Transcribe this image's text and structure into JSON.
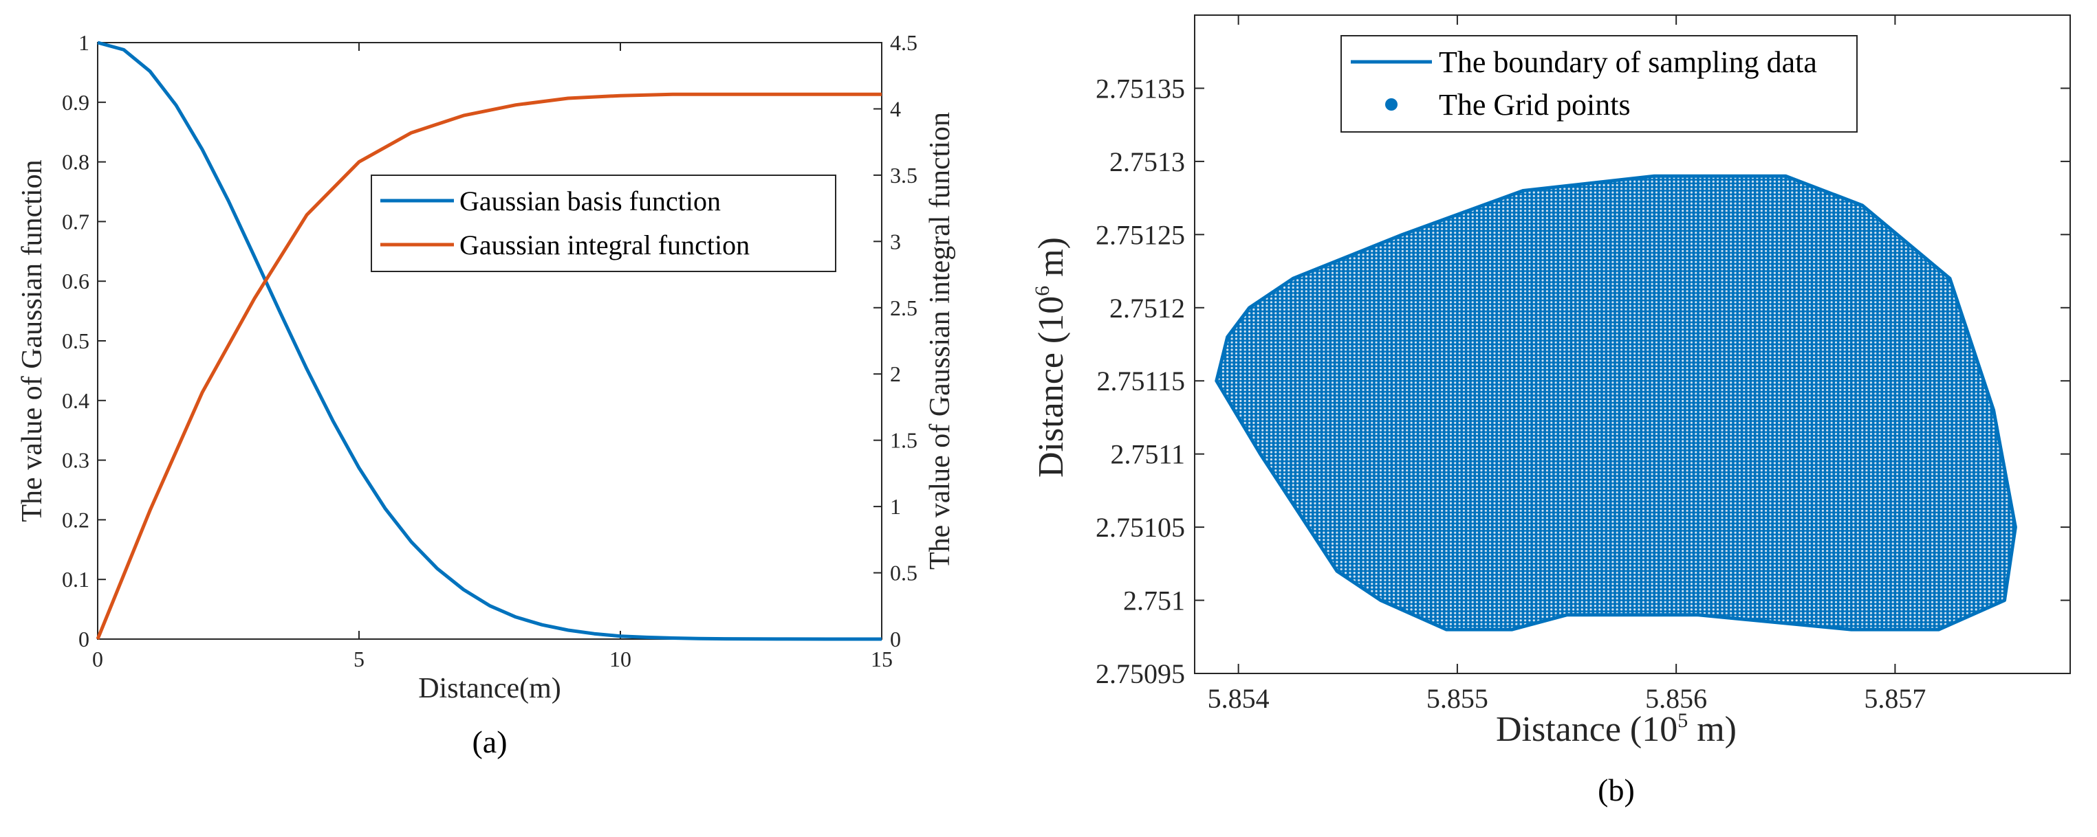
{
  "chart_data": [
    {
      "type": "line",
      "panel_label": "(a)",
      "xlabel": "Distance(m)",
      "ylabel_left": "The value of Gaussian function",
      "ylabel_right": "The value of Gaussian integral function",
      "xlim": [
        0,
        15
      ],
      "ylim_left": [
        0,
        1
      ],
      "ylim_right": [
        0,
        4.5
      ],
      "x_ticks": [
        "0",
        "5",
        "10",
        "15"
      ],
      "y_ticks_left": [
        "0",
        "0.1",
        "0.2",
        "0.3",
        "0.4",
        "0.5",
        "0.6",
        "0.7",
        "0.8",
        "0.9",
        "1"
      ],
      "y_ticks_right": [
        "0",
        "0.5",
        "1",
        "1.5",
        "2",
        "2.5",
        "3",
        "3.5",
        "4",
        "4.5"
      ],
      "legend_position": "center-right",
      "series": [
        {
          "name": "Gaussian basis function",
          "axis": "left",
          "color": "#0072BD",
          "x": [
            0,
            0.5,
            1,
            1.5,
            2,
            2.5,
            3,
            3.5,
            4,
            4.5,
            5,
            5.5,
            6,
            6.5,
            7,
            7.5,
            8,
            8.5,
            9,
            9.5,
            10,
            10.5,
            11,
            11.5,
            12,
            13,
            14,
            15
          ],
          "y": [
            1.0,
            0.988,
            0.952,
            0.895,
            0.821,
            0.735,
            0.641,
            0.546,
            0.453,
            0.366,
            0.287,
            0.219,
            0.163,
            0.118,
            0.083,
            0.056,
            0.037,
            0.024,
            0.015,
            0.009,
            0.005,
            0.003,
            0.0017,
            0.0009,
            0.0005,
            0.0001,
            0.0,
            0.0
          ]
        },
        {
          "name": "Gaussian integral function",
          "axis": "right",
          "color": "#D95319",
          "x": [
            0,
            1,
            2,
            3,
            4,
            5,
            6,
            7,
            8,
            9,
            10,
            11,
            12,
            13,
            14,
            15
          ],
          "y": [
            0.0,
            0.97,
            1.86,
            2.57,
            3.2,
            3.6,
            3.82,
            3.95,
            4.03,
            4.08,
            4.1,
            4.11,
            4.11,
            4.11,
            4.11,
            4.11
          ]
        }
      ]
    },
    {
      "type": "scatter",
      "panel_label": "(b)",
      "xlabel": "Distance (10",
      "xlabel_exp": "5",
      "xlabel_unit": " m)",
      "ylabel": "Distance (10",
      "ylabel_exp": "6",
      "ylabel_unit": " m)",
      "xlim": [
        5.8538,
        5.8578
      ],
      "ylim": [
        2.75095,
        2.7514
      ],
      "x_ticks": [
        "5.854",
        "5.855",
        "5.856",
        "5.857"
      ],
      "y_ticks": [
        "2.75095",
        "2.751",
        "2.75105",
        "2.7511",
        "2.75115",
        "2.7512",
        "2.75125",
        "2.7513",
        "2.75135"
      ],
      "legend_position": "top",
      "grid_spacing_x": 0.0001,
      "grid_spacing_y": 5e-06,
      "series": [
        {
          "name": "The boundary of sampling data",
          "color": "#0072BD",
          "x": [
            5.85405,
            5.85425,
            5.85475,
            5.8553,
            5.8559,
            5.8565,
            5.85685,
            5.85725,
            5.85745,
            5.85755,
            5.8575,
            5.8572,
            5.8568,
            5.8561,
            5.8555,
            5.85525,
            5.85495,
            5.85465,
            5.85445,
            5.8541,
            5.8539,
            5.85395,
            5.85405
          ],
          "y": [
            2.7512,
            2.75122,
            2.75125,
            2.75128,
            2.75129,
            2.75129,
            2.75127,
            2.75122,
            2.75113,
            2.75105,
            2.751,
            2.75098,
            2.75098,
            2.75099,
            2.75099,
            2.75098,
            2.75098,
            2.751,
            2.75102,
            2.7511,
            2.75115,
            2.75118,
            2.7512
          ]
        },
        {
          "name": "The Grid points",
          "color": "#0072BD",
          "marker": "filled-circle"
        }
      ]
    }
  ]
}
